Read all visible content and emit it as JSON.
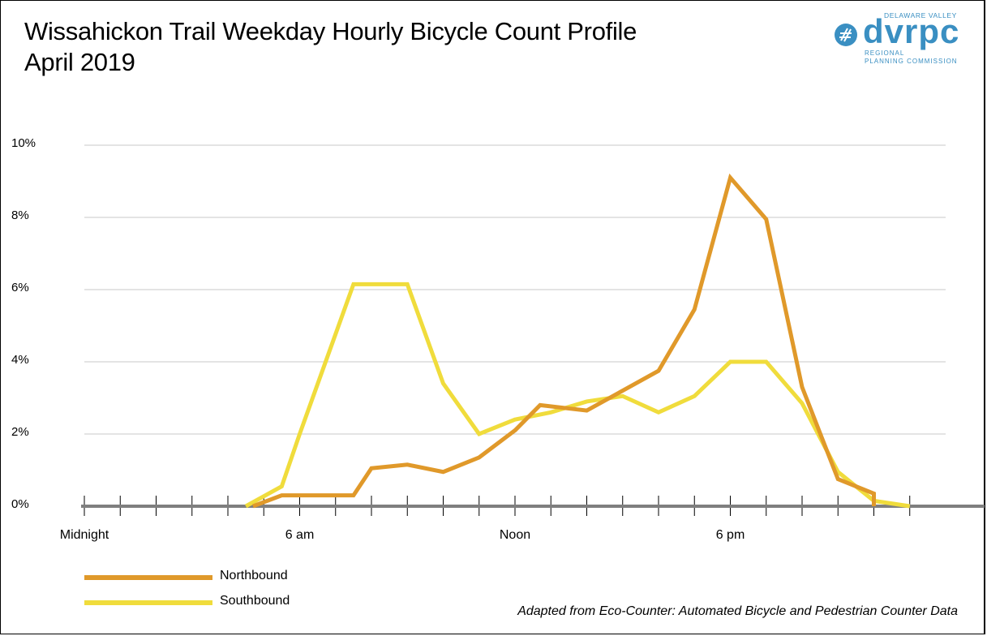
{
  "title_line1": "Wissahickon Trail Weekday Hourly Bicycle Count Profile",
  "title_line2": "April 2019",
  "logo": {
    "top_text": "DELAWARE VALLEY",
    "word": "dvrpc",
    "sub_line1": "REGIONAL",
    "sub_line2": "PLANNING COMMISSION",
    "color": "#3a8fc2"
  },
  "source": "Adapted from Eco-Counter: Automated Bicycle and Pedestrian Counter Data",
  "colors": {
    "northbound": "#e0992a",
    "southbound": "#f0dc3c",
    "axis": "#7f7f7f",
    "grid": "#c8c8c8"
  },
  "chart_data": {
    "type": "line",
    "title": "Wissahickon Trail Weekday Hourly Bicycle Count Profile April 2019",
    "ylabel": "",
    "xlabel": "",
    "ylim": [
      0,
      10
    ],
    "y_ticks": [
      0,
      2,
      4,
      6,
      8,
      10
    ],
    "y_tick_labels": [
      "0%",
      "2%",
      "4%",
      "6%",
      "8%",
      "10%"
    ],
    "x_range": [
      0,
      24
    ],
    "x_tick_labels": [
      {
        "x": 0,
        "label": "Midnight"
      },
      {
        "x": 6,
        "label": "6 am"
      },
      {
        "x": 12,
        "label": "Noon"
      },
      {
        "x": 18,
        "label": "6 pm"
      }
    ],
    "legend_position": "bottom-left",
    "series": [
      {
        "name": "Northbound",
        "color_key": "northbound",
        "x": [
          4.7,
          5.5,
          6.0,
          7.5,
          8.0,
          9.0,
          10.0,
          11.0,
          12.0,
          12.7,
          14.0,
          15.0,
          16.0,
          17.0,
          18.0,
          19.0,
          20.0,
          21.0,
          22.0,
          22.0
        ],
        "values": [
          0,
          0.3,
          0.3,
          0.3,
          1.05,
          1.15,
          0.95,
          1.35,
          2.1,
          2.8,
          2.65,
          3.2,
          3.75,
          5.45,
          9.1,
          7.95,
          3.3,
          0.75,
          0.35,
          0
        ]
      },
      {
        "name": "Southbound",
        "color_key": "southbound",
        "x": [
          4.5,
          5.5,
          6.0,
          7.5,
          8.0,
          9.0,
          10.0,
          11.0,
          12.0,
          13.0,
          14.0,
          15.0,
          16.0,
          17.0,
          18.0,
          19.0,
          20.0,
          21.0,
          22.0,
          23.0
        ],
        "values": [
          0,
          0.55,
          2.0,
          6.15,
          6.15,
          6.15,
          3.4,
          2.0,
          2.4,
          2.6,
          2.9,
          3.05,
          2.6,
          3.05,
          4.0,
          4.0,
          2.85,
          0.95,
          0.15,
          0
        ]
      }
    ]
  }
}
